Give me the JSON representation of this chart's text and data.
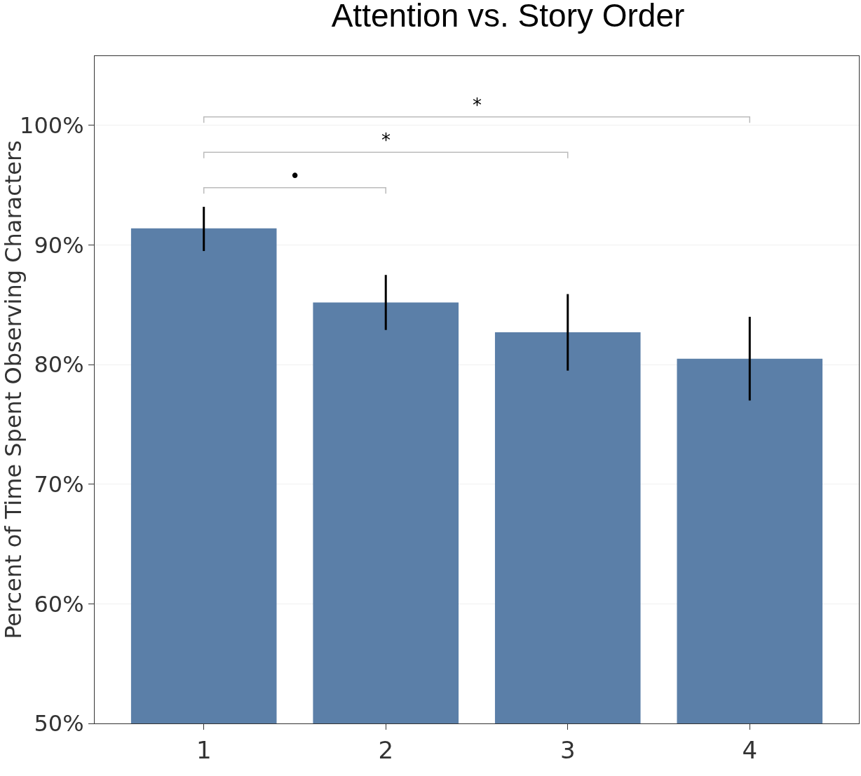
{
  "chart_data": {
    "type": "bar",
    "title": "Attention vs. Story Order",
    "ylabel": "Percent of Time Spent Observing Characters",
    "categories": [
      "1",
      "2",
      "3",
      "4"
    ],
    "values": [
      91.4,
      85.2,
      82.7,
      80.5
    ],
    "errors": [
      [
        89.5,
        93.2
      ],
      [
        82.9,
        87.5
      ],
      [
        79.5,
        85.9
      ],
      [
        77.0,
        84.0
      ]
    ],
    "color": "#5b7fa8",
    "ylim": [
      50,
      105.8
    ],
    "yticks": [
      {
        "value": 50,
        "label": "50%"
      },
      {
        "value": 60,
        "label": "60%"
      },
      {
        "value": 70,
        "label": "70%"
      },
      {
        "value": 80,
        "label": "80%"
      },
      {
        "value": 90,
        "label": "90%"
      },
      {
        "value": 100,
        "label": "100%"
      }
    ],
    "grid": "y",
    "annotations": [
      "•",
      "*",
      "*"
    ]
  }
}
